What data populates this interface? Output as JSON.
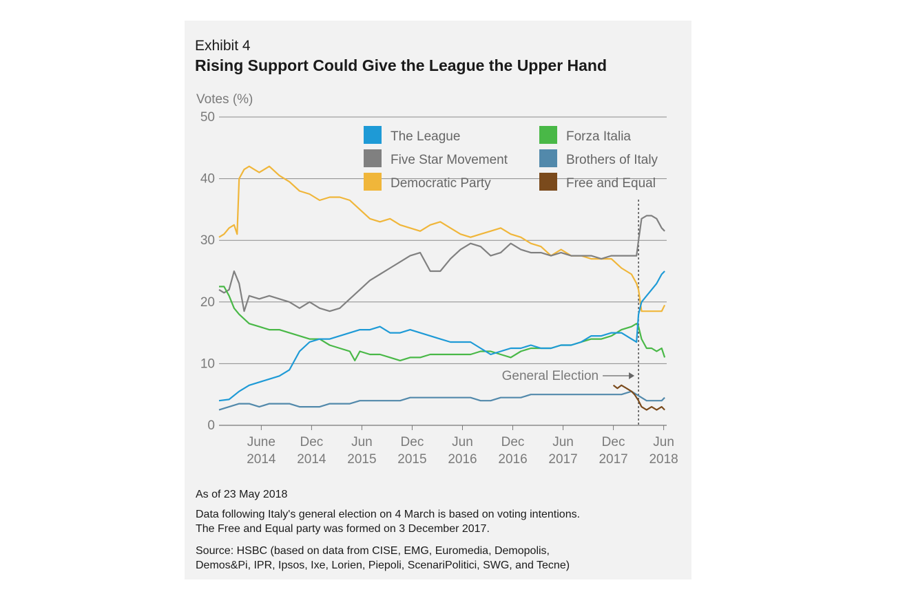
{
  "exhibit_label": "Exhibit 4",
  "title": "Rising Support Could Give the League the Upper Hand",
  "notes": {
    "as_of": "As of 23 May 2018",
    "note_line1": "Data following Italy's general election on 4 March is based on voting intentions.",
    "note_line2": "The Free and Equal party was formed on 3 December 2017.",
    "source_line1": "Source: HSBC (based on data from CISE, EMG, Euromedia, Demopolis,",
    "source_line2": "Demos&Pi, IPR, Ipsos, Ixe, Lorien, Piepoli, ScenariPolitici, SWG, and Tecne)"
  },
  "chart_data": {
    "type": "line",
    "ylabel": "Votes (%)",
    "ylim": [
      0,
      50
    ],
    "yticks": [
      0,
      10,
      20,
      30,
      40,
      50
    ],
    "xlim": [
      2014.0,
      2018.45
    ],
    "xticks": [
      {
        "x": 2014.42,
        "line1": "June",
        "line2": "2014"
      },
      {
        "x": 2014.92,
        "line1": "Dec",
        "line2": "2014"
      },
      {
        "x": 2015.42,
        "line1": "Jun",
        "line2": "2015"
      },
      {
        "x": 2015.92,
        "line1": "Dec",
        "line2": "2015"
      },
      {
        "x": 2016.42,
        "line1": "Jun",
        "line2": "2016"
      },
      {
        "x": 2016.92,
        "line1": "Dec",
        "line2": "2016"
      },
      {
        "x": 2017.42,
        "line1": "Jun",
        "line2": "2017"
      },
      {
        "x": 2017.92,
        "line1": "Dec",
        "line2": "2017"
      },
      {
        "x": 2018.42,
        "line1": "Jun",
        "line2": "2018"
      }
    ],
    "annotation": {
      "label": "General Election",
      "x": 2018.17
    },
    "series": [
      {
        "name": "The League",
        "color": "#1e9ad6",
        "x": [
          2014.0,
          2014.1,
          2014.2,
          2014.3,
          2014.4,
          2014.5,
          2014.6,
          2014.7,
          2014.8,
          2014.9,
          2015.0,
          2015.1,
          2015.2,
          2015.3,
          2015.4,
          2015.5,
          2015.6,
          2015.7,
          2015.8,
          2015.9,
          2016.0,
          2016.1,
          2016.2,
          2016.3,
          2016.4,
          2016.5,
          2016.6,
          2016.7,
          2016.8,
          2016.9,
          2017.0,
          2017.1,
          2017.2,
          2017.3,
          2017.4,
          2017.5,
          2017.6,
          2017.7,
          2017.8,
          2017.9,
          2018.0,
          2018.1,
          2018.15,
          2018.17,
          2018.2,
          2018.25,
          2018.3,
          2018.35,
          2018.4,
          2018.43
        ],
        "values": [
          4,
          4.2,
          5.5,
          6.5,
          7,
          7.5,
          8,
          9,
          12,
          13.5,
          14,
          14,
          14.5,
          15,
          15.5,
          15.5,
          16,
          15,
          15,
          15.5,
          15,
          14.5,
          14,
          13.5,
          13.5,
          13.5,
          12.5,
          11.5,
          12,
          12.5,
          12.5,
          13,
          12.5,
          12.5,
          13,
          13,
          13.5,
          14.5,
          14.5,
          15,
          15,
          14,
          13.5,
          18,
          20,
          21,
          22,
          23,
          24.5,
          25
        ]
      },
      {
        "name": "Five Star Movement",
        "color": "#808080",
        "x": [
          2014.0,
          2014.05,
          2014.1,
          2014.15,
          2014.2,
          2014.25,
          2014.3,
          2014.4,
          2014.5,
          2014.6,
          2014.7,
          2014.8,
          2014.9,
          2015.0,
          2015.1,
          2015.2,
          2015.3,
          2015.4,
          2015.5,
          2015.6,
          2015.7,
          2015.8,
          2015.9,
          2016.0,
          2016.1,
          2016.2,
          2016.3,
          2016.4,
          2016.5,
          2016.6,
          2016.7,
          2016.8,
          2016.9,
          2017.0,
          2017.1,
          2017.2,
          2017.3,
          2017.4,
          2017.5,
          2017.6,
          2017.7,
          2017.8,
          2017.9,
          2018.0,
          2018.1,
          2018.15,
          2018.17,
          2018.2,
          2018.25,
          2018.3,
          2018.35,
          2018.4,
          2018.43
        ],
        "values": [
          22,
          21.5,
          22,
          25,
          23,
          18.5,
          21,
          20.5,
          21,
          20.5,
          20,
          19,
          20,
          19,
          18.5,
          19,
          20.5,
          22,
          23.5,
          24.5,
          25.5,
          26.5,
          27.5,
          28,
          25,
          25,
          27,
          28.5,
          29.5,
          29,
          27.5,
          28,
          29.5,
          28.5,
          28,
          28,
          27.5,
          28,
          27.5,
          27.5,
          27.5,
          27,
          27.5,
          27.5,
          27.5,
          27.5,
          30,
          33.5,
          34,
          34,
          33.5,
          32,
          31.5
        ]
      },
      {
        "name": "Democratic Party",
        "color": "#f0b63a",
        "x": [
          2014.0,
          2014.05,
          2014.1,
          2014.15,
          2014.18,
          2014.2,
          2014.25,
          2014.3,
          2014.35,
          2014.4,
          2014.5,
          2014.6,
          2014.7,
          2014.8,
          2014.9,
          2015.0,
          2015.1,
          2015.2,
          2015.3,
          2015.4,
          2015.5,
          2015.6,
          2015.7,
          2015.8,
          2015.9,
          2016.0,
          2016.1,
          2016.2,
          2016.3,
          2016.4,
          2016.5,
          2016.6,
          2016.7,
          2016.8,
          2016.9,
          2017.0,
          2017.1,
          2017.2,
          2017.3,
          2017.4,
          2017.5,
          2017.6,
          2017.7,
          2017.8,
          2017.9,
          2018.0,
          2018.1,
          2018.15,
          2018.17,
          2018.2,
          2018.25,
          2018.3,
          2018.35,
          2018.4,
          2018.43
        ],
        "values": [
          30.5,
          31,
          32,
          32.5,
          31,
          40,
          41.5,
          42,
          41.5,
          41,
          42,
          40.5,
          39.5,
          38,
          37.5,
          36.5,
          37,
          37,
          36.5,
          35,
          33.5,
          33,
          33.5,
          32.5,
          32,
          31.5,
          32.5,
          33,
          32,
          31,
          30.5,
          31,
          31.5,
          32,
          31,
          30.5,
          29.5,
          29,
          27.5,
          28.5,
          27.5,
          27.5,
          27,
          27,
          27,
          25.5,
          24.5,
          23,
          22,
          18.5,
          18.5,
          18.5,
          18.5,
          18.5,
          19.5
        ]
      },
      {
        "name": "Forza Italia",
        "color": "#49b847",
        "x": [
          2014.0,
          2014.05,
          2014.1,
          2014.15,
          2014.2,
          2014.3,
          2014.4,
          2014.5,
          2014.6,
          2014.7,
          2014.8,
          2014.9,
          2015.0,
          2015.1,
          2015.2,
          2015.3,
          2015.35,
          2015.4,
          2015.5,
          2015.6,
          2015.7,
          2015.8,
          2015.9,
          2016.0,
          2016.1,
          2016.2,
          2016.3,
          2016.4,
          2016.5,
          2016.6,
          2016.7,
          2016.8,
          2016.9,
          2017.0,
          2017.1,
          2017.2,
          2017.3,
          2017.4,
          2017.5,
          2017.6,
          2017.7,
          2017.8,
          2017.9,
          2018.0,
          2018.1,
          2018.15,
          2018.17,
          2018.2,
          2018.25,
          2018.3,
          2018.35,
          2018.4,
          2018.43
        ],
        "values": [
          22.5,
          22.5,
          21,
          19,
          18,
          16.5,
          16,
          15.5,
          15.5,
          15,
          14.5,
          14,
          14,
          13,
          12.5,
          12,
          10.5,
          12,
          11.5,
          11.5,
          11,
          10.5,
          11,
          11,
          11.5,
          11.5,
          11.5,
          11.5,
          11.5,
          12,
          12,
          11.5,
          11,
          12,
          12.5,
          12.5,
          12.5,
          13,
          13,
          13.5,
          14,
          14,
          14.5,
          15.5,
          16,
          16.5,
          16,
          14,
          12.5,
          12.5,
          12,
          12.5,
          11
        ]
      },
      {
        "name": "Brothers of Italy",
        "color": "#5289ab",
        "x": [
          2014.0,
          2014.1,
          2014.2,
          2014.3,
          2014.4,
          2014.5,
          2014.6,
          2014.7,
          2014.8,
          2014.9,
          2015.0,
          2015.1,
          2015.2,
          2015.3,
          2015.4,
          2015.5,
          2015.6,
          2015.7,
          2015.8,
          2015.9,
          2016.0,
          2016.1,
          2016.2,
          2016.3,
          2016.4,
          2016.5,
          2016.6,
          2016.7,
          2016.8,
          2016.9,
          2017.0,
          2017.1,
          2017.2,
          2017.3,
          2017.4,
          2017.5,
          2017.6,
          2017.7,
          2017.8,
          2017.9,
          2018.0,
          2018.1,
          2018.15,
          2018.2,
          2018.25,
          2018.3,
          2018.35,
          2018.4,
          2018.43
        ],
        "values": [
          2.5,
          3,
          3.5,
          3.5,
          3,
          3.5,
          3.5,
          3.5,
          3,
          3,
          3,
          3.5,
          3.5,
          3.5,
          4,
          4,
          4,
          4,
          4,
          4.5,
          4.5,
          4.5,
          4.5,
          4.5,
          4.5,
          4.5,
          4,
          4,
          4.5,
          4.5,
          4.5,
          5,
          5,
          5,
          5,
          5,
          5,
          5,
          5,
          5,
          5,
          5.5,
          5,
          4.5,
          4,
          4,
          4,
          4,
          4.5
        ]
      },
      {
        "name": "Free and Equal",
        "color": "#7a4a1c",
        "x": [
          2017.92,
          2017.96,
          2018.0,
          2018.05,
          2018.1,
          2018.13,
          2018.17,
          2018.2,
          2018.25,
          2018.3,
          2018.35,
          2018.4,
          2018.43
        ],
        "values": [
          6.5,
          6,
          6.5,
          6,
          5.5,
          5,
          4,
          3,
          2.5,
          3,
          2.5,
          3,
          2.5
        ]
      }
    ]
  }
}
